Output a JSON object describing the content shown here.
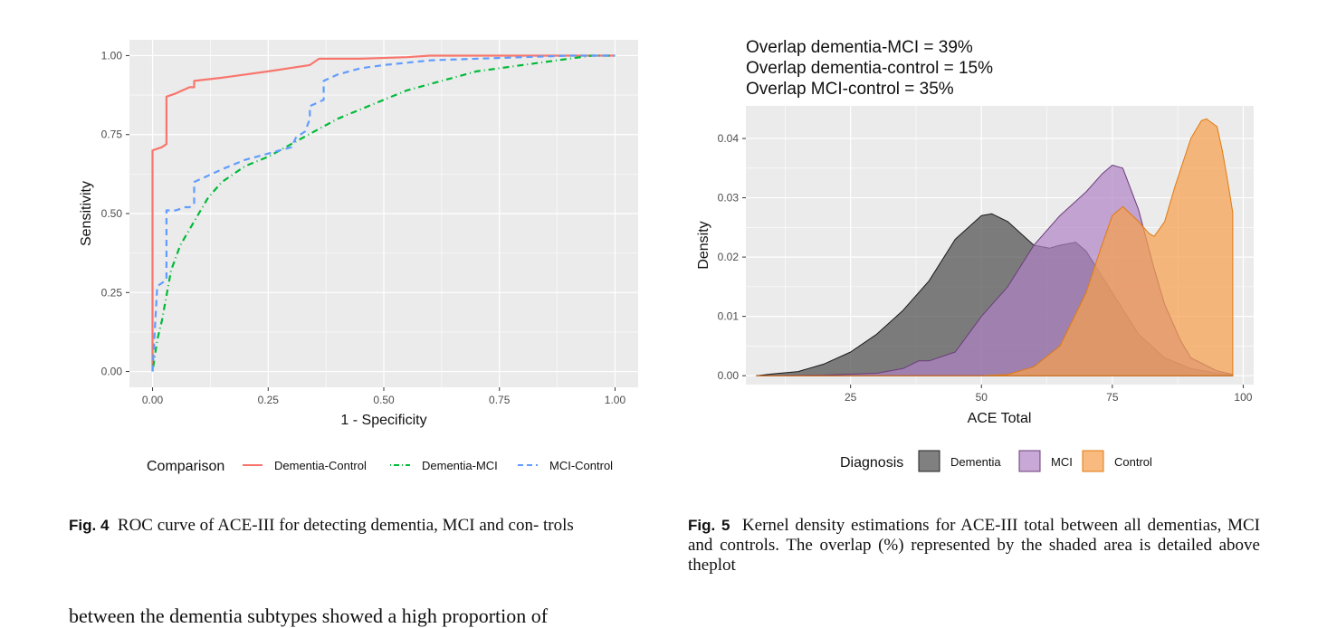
{
  "chart_data": [
    {
      "type": "line",
      "xlabel": "1 - Specificity",
      "ylabel": "Sensitivity",
      "xlim": [
        0,
        1
      ],
      "ylim": [
        0,
        1
      ],
      "x_ticks": [
        "0.00",
        "0.25",
        "0.50",
        "0.75",
        "1.00"
      ],
      "y_ticks": [
        "0.00",
        "0.25",
        "0.50",
        "0.75",
        "1.00"
      ],
      "grid": true,
      "legend": {
        "title": "Comparison",
        "position": "bottom"
      },
      "series": [
        {
          "name": "Dementia-Control",
          "color": "#F8766D",
          "style": "solid",
          "x": [
            0,
            0,
            0,
            0.02,
            0.03,
            0.03,
            0.05,
            0.08,
            0.09,
            0.09,
            0.15,
            0.25,
            0.34,
            0.35,
            0.36,
            0.45,
            0.55,
            0.6,
            0.7,
            0.8,
            1.0
          ],
          "y": [
            0,
            0.3,
            0.7,
            0.71,
            0.72,
            0.87,
            0.88,
            0.9,
            0.9,
            0.92,
            0.93,
            0.95,
            0.97,
            0.98,
            0.99,
            0.99,
            0.995,
            1.0,
            1.0,
            1.0,
            1.0
          ]
        },
        {
          "name": "Dementia-MCI",
          "color": "#00BA38",
          "style": "dotdash",
          "x": [
            0,
            0.01,
            0.02,
            0.03,
            0.04,
            0.05,
            0.06,
            0.08,
            0.1,
            0.12,
            0.15,
            0.18,
            0.2,
            0.25,
            0.3,
            0.35,
            0.4,
            0.45,
            0.5,
            0.55,
            0.6,
            0.65,
            0.7,
            0.75,
            0.8,
            0.85,
            0.9,
            0.95,
            1.0
          ],
          "y": [
            0,
            0.1,
            0.16,
            0.24,
            0.32,
            0.36,
            0.4,
            0.45,
            0.5,
            0.55,
            0.6,
            0.63,
            0.65,
            0.68,
            0.72,
            0.76,
            0.8,
            0.83,
            0.86,
            0.89,
            0.91,
            0.93,
            0.95,
            0.96,
            0.97,
            0.98,
            0.99,
            1.0,
            1.0
          ]
        },
        {
          "name": "MCI-Control",
          "color": "#619CFF",
          "style": "dashed",
          "x": [
            0,
            0.01,
            0.02,
            0.03,
            0.03,
            0.05,
            0.07,
            0.08,
            0.09,
            0.09,
            0.12,
            0.15,
            0.2,
            0.25,
            0.3,
            0.31,
            0.33,
            0.34,
            0.34,
            0.37,
            0.37,
            0.4,
            0.45,
            0.5,
            0.6,
            0.7,
            0.8,
            0.9,
            1.0
          ],
          "y": [
            0,
            0.27,
            0.28,
            0.29,
            0.51,
            0.51,
            0.52,
            0.52,
            0.53,
            0.6,
            0.62,
            0.64,
            0.67,
            0.69,
            0.71,
            0.74,
            0.76,
            0.8,
            0.84,
            0.86,
            0.92,
            0.94,
            0.96,
            0.97,
            0.985,
            0.99,
            0.995,
            1.0,
            1.0
          ]
        }
      ]
    },
    {
      "type": "area",
      "title_lines": [
        "Overlap dementia-MCI = 39%",
        "Overlap dementia-control = 15%",
        "Overlap MCI-control = 35%"
      ],
      "xlabel": "ACE Total",
      "ylabel": "Density",
      "xlim": [
        5,
        102
      ],
      "ylim": [
        -0.0015,
        0.0455
      ],
      "x_ticks": [
        "25",
        "50",
        "75",
        "100"
      ],
      "y_ticks": [
        "0.00",
        "0.01",
        "0.02",
        "0.03",
        "0.04"
      ],
      "grid": true,
      "legend": {
        "title": "Diagnosis",
        "position": "bottom"
      },
      "series": [
        {
          "name": "Dementia",
          "fill": "#555555",
          "opacity": 0.75,
          "x": [
            7,
            10,
            15,
            20,
            25,
            30,
            35,
            40,
            45,
            50,
            52,
            55,
            60,
            63,
            65,
            68,
            70,
            75,
            80,
            85,
            90,
            95,
            98
          ],
          "y": [
            0,
            0.0003,
            0.0007,
            0.002,
            0.004,
            0.007,
            0.011,
            0.016,
            0.023,
            0.027,
            0.0273,
            0.026,
            0.022,
            0.0215,
            0.022,
            0.0225,
            0.021,
            0.014,
            0.007,
            0.003,
            0.0012,
            0.0004,
            0.0001
          ]
        },
        {
          "name": "MCI",
          "fill": "#B183C4",
          "opacity": 0.7,
          "x": [
            7,
            20,
            30,
            35,
            38,
            40,
            45,
            50,
            55,
            60,
            65,
            70,
            73,
            75,
            77,
            80,
            83,
            85,
            88,
            90,
            95,
            98
          ],
          "y": [
            0,
            0.0001,
            0.0004,
            0.0012,
            0.0025,
            0.0025,
            0.004,
            0.01,
            0.015,
            0.022,
            0.027,
            0.031,
            0.034,
            0.0355,
            0.035,
            0.028,
            0.018,
            0.012,
            0.006,
            0.003,
            0.0008,
            0.0002
          ]
        },
        {
          "name": "Control",
          "fill": "#F5A04E",
          "opacity": 0.72,
          "x": [
            7,
            50,
            55,
            60,
            65,
            70,
            73,
            75,
            77,
            80,
            82,
            83,
            85,
            87,
            90,
            92,
            93,
            95,
            96,
            97,
            98,
            98
          ],
          "y": [
            0,
            0,
            0.0002,
            0.0015,
            0.005,
            0.014,
            0.022,
            0.027,
            0.0285,
            0.026,
            0.024,
            0.0235,
            0.026,
            0.032,
            0.04,
            0.043,
            0.0433,
            0.042,
            0.038,
            0.033,
            0.0275,
            0
          ]
        }
      ]
    }
  ],
  "captions": {
    "fig4": {
      "label": "Fig. 4",
      "text": "ROC curve of ACE-III for detecting dementia, MCI and con- trols"
    },
    "fig5": {
      "label": "Fig. 5",
      "text": "Kernel density estimations for ACE-III total between all dementias, MCI and controls. The overlap (%) represented by the shaded area is detailed above theplot"
    }
  },
  "body_text": "between the dementia subtypes showed a high proportion of"
}
